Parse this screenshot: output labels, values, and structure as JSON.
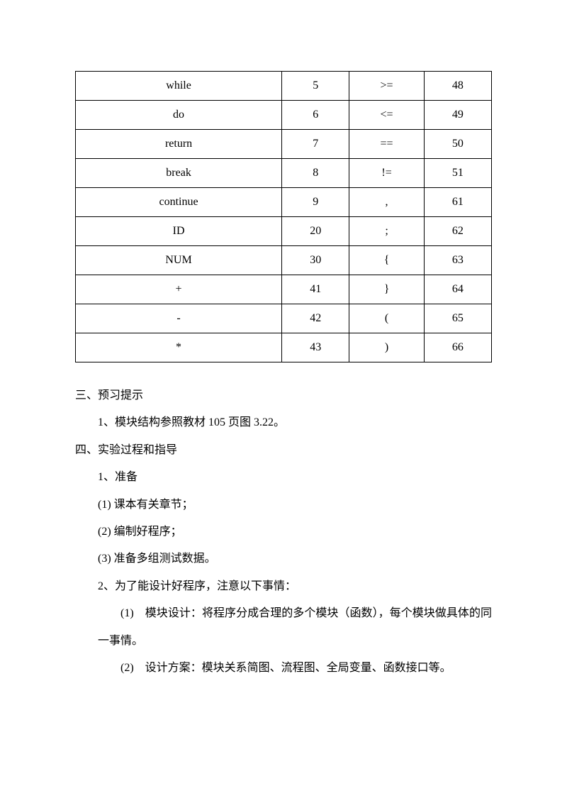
{
  "table": {
    "rows": [
      [
        "while",
        "5",
        ">=",
        "48"
      ],
      [
        "do",
        "6",
        "<=",
        "49"
      ],
      [
        "return",
        "7",
        "==",
        "50"
      ],
      [
        "break",
        "8",
        "!=",
        "51"
      ],
      [
        "continue",
        "9",
        ",",
        "61"
      ],
      [
        "ID",
        "20",
        ";",
        "62"
      ],
      [
        "NUM",
        "30",
        "{",
        "63"
      ],
      [
        "+",
        "41",
        "}",
        "64"
      ],
      [
        "-",
        "42",
        "(",
        "65"
      ],
      [
        "*",
        "43",
        ")",
        "66"
      ]
    ]
  },
  "text": {
    "section3": "三、预习提示",
    "s3_item1": "1、模块结构参照教材 105 页图 3.22。",
    "section4": "四、实验过程和指导",
    "s4_item1": "1、准备",
    "s4_1_1": "(1)  课本有关章节；",
    "s4_1_2": "(2)  编制好程序；",
    "s4_1_3": "(3)  准备多组测试数据。",
    "s4_item2": "2、为了能设计好程序，注意以下事情：",
    "s4_2_1": "(1)　模块设计：将程序分成合理的多个模块（函数），每个模块做具体的同一事情。",
    "s4_2_2": "(2)　设计方案：模块关系简图、流程图、全局变量、函数接口等。"
  }
}
